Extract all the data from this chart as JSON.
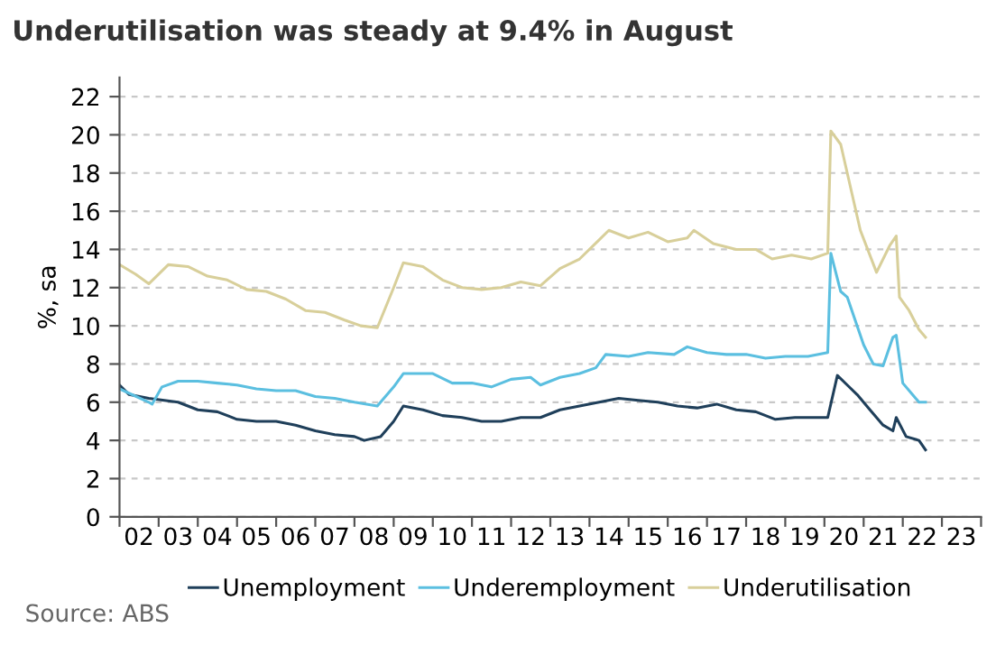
{
  "chart_data": {
    "type": "line",
    "title": "Underutilisation was steady at 9.4% in August",
    "ylabel": "%, sa",
    "annotations": [
      "Source: ABS"
    ],
    "xlim": [
      "2002-01-01",
      "2024-01-01"
    ],
    "ylim": [
      0,
      23
    ],
    "yticks": [
      0,
      2,
      4,
      6,
      8,
      10,
      12,
      14,
      16,
      18,
      20,
      22
    ],
    "xticks": [
      {
        "value": "2002-01-01",
        "label": null
      },
      {
        "value": "2003-01-01",
        "label": null
      },
      {
        "value": "2004-01-01",
        "label": null
      },
      {
        "value": "2005-01-01",
        "label": null
      },
      {
        "value": "2006-01-01",
        "label": null
      },
      {
        "value": "2007-01-01",
        "label": null
      },
      {
        "value": "2008-01-01",
        "label": null
      },
      {
        "value": "2009-01-01",
        "label": null
      },
      {
        "value": "2010-01-01",
        "label": null
      },
      {
        "value": "2011-01-01",
        "label": null
      },
      {
        "value": "2012-01-01",
        "label": null
      },
      {
        "value": "2013-01-01",
        "label": null
      },
      {
        "value": "2014-01-01",
        "label": null
      },
      {
        "value": "2015-01-01",
        "label": null
      },
      {
        "value": "2016-01-01",
        "label": null
      },
      {
        "value": "2017-01-01",
        "label": null
      },
      {
        "value": "2018-01-01",
        "label": null
      },
      {
        "value": "2019-01-01",
        "label": null
      },
      {
        "value": "2020-01-01",
        "label": null
      },
      {
        "value": "2021-01-01",
        "label": null
      },
      {
        "value": "2022-01-01",
        "label": null
      },
      {
        "value": "2023-01-01",
        "label": null
      },
      {
        "value": "2024-01-01",
        "label": null
      },
      {
        "value": "2002-07-01",
        "label": "02"
      },
      {
        "value": "2003-07-01",
        "label": "03"
      },
      {
        "value": "2004-07-01",
        "label": "04"
      },
      {
        "value": "2005-07-01",
        "label": "05"
      },
      {
        "value": "2006-07-01",
        "label": "06"
      },
      {
        "value": "2007-07-01",
        "label": "07"
      },
      {
        "value": "2008-07-01",
        "label": "08"
      },
      {
        "value": "2009-07-01",
        "label": "09"
      },
      {
        "value": "2010-07-01",
        "label": "10"
      },
      {
        "value": "2011-07-01",
        "label": "11"
      },
      {
        "value": "2012-07-01",
        "label": "12"
      },
      {
        "value": "2013-07-01",
        "label": "13"
      },
      {
        "value": "2014-07-01",
        "label": "14"
      },
      {
        "value": "2015-07-01",
        "label": "15"
      },
      {
        "value": "2016-07-01",
        "label": "16"
      },
      {
        "value": "2017-07-01",
        "label": "17"
      },
      {
        "value": "2018-07-01",
        "label": "18"
      },
      {
        "value": "2019-07-01",
        "label": "19"
      },
      {
        "value": "2020-07-01",
        "label": "20"
      },
      {
        "value": "2021-07-01",
        "label": "21"
      },
      {
        "value": "2022-07-01",
        "label": "22"
      },
      {
        "value": "2023-07-01",
        "label": "23"
      }
    ],
    "grid": "y",
    "legend": "bottom",
    "marker": "none",
    "line_style": "solid",
    "series": [
      {
        "name": "Unemployment",
        "color": "#1f3f5a",
        "x": [
          "2002-01",
          "2002-04",
          "2002-10",
          "2003-07",
          "2004-01",
          "2004-07",
          "2005-01",
          "2005-07",
          "2006-01",
          "2006-07",
          "2007-01",
          "2007-07",
          "2008-01",
          "2008-04",
          "2008-09",
          "2009-01",
          "2009-04",
          "2009-10",
          "2010-04",
          "2010-10",
          "2011-04",
          "2011-10",
          "2012-04",
          "2012-10",
          "2013-04",
          "2013-10",
          "2014-04",
          "2014-10",
          "2015-04",
          "2015-10",
          "2016-04",
          "2016-10",
          "2017-04",
          "2017-10",
          "2018-04",
          "2018-10",
          "2019-04",
          "2019-10",
          "2020-02",
          "2020-05",
          "2020-08",
          "2020-11",
          "2021-03",
          "2021-07",
          "2021-10",
          "2021-11",
          "2022-02",
          "2022-06",
          "2022-08"
        ],
        "values": [
          6.9,
          6.4,
          6.2,
          6.0,
          5.6,
          5.5,
          5.1,
          5.0,
          5.0,
          4.8,
          4.5,
          4.3,
          4.2,
          4.0,
          4.2,
          5.0,
          5.8,
          5.6,
          5.3,
          5.2,
          5.0,
          5.0,
          5.2,
          5.2,
          5.6,
          5.8,
          6.0,
          6.2,
          6.1,
          6.0,
          5.8,
          5.7,
          5.9,
          5.6,
          5.5,
          5.1,
          5.2,
          5.2,
          5.2,
          7.4,
          6.9,
          6.4,
          5.6,
          4.8,
          4.5,
          5.2,
          4.2,
          4.0,
          3.5
        ]
      },
      {
        "name": "Underemployment",
        "color": "#5bbfe0",
        "x": [
          "2002-01",
          "2002-10",
          "2002-11",
          "2003-02",
          "2003-07",
          "2004-01",
          "2004-07",
          "2005-01",
          "2005-07",
          "2006-01",
          "2006-07",
          "2007-01",
          "2007-07",
          "2008-01",
          "2008-08",
          "2009-01",
          "2009-04",
          "2010-01",
          "2010-07",
          "2011-01",
          "2011-07",
          "2012-01",
          "2012-07",
          "2012-10",
          "2013-04",
          "2013-10",
          "2014-03",
          "2014-06",
          "2015-01",
          "2015-07",
          "2016-03",
          "2016-07",
          "2017-01",
          "2017-07",
          "2018-01",
          "2018-07",
          "2019-01",
          "2019-08",
          "2020-02",
          "2020-03",
          "2020-06",
          "2020-08",
          "2021-01",
          "2021-04",
          "2021-07",
          "2021-10",
          "2021-11",
          "2022-01",
          "2022-04",
          "2022-06",
          "2022-08"
        ],
        "values": [
          6.7,
          6.0,
          5.9,
          6.8,
          7.1,
          7.1,
          7.0,
          6.9,
          6.7,
          6.6,
          6.6,
          6.3,
          6.2,
          6.0,
          5.8,
          6.8,
          7.5,
          7.5,
          7.0,
          7.0,
          6.8,
          7.2,
          7.3,
          6.9,
          7.3,
          7.5,
          7.8,
          8.5,
          8.4,
          8.6,
          8.5,
          8.9,
          8.6,
          8.5,
          8.5,
          8.3,
          8.4,
          8.4,
          8.6,
          13.8,
          11.8,
          11.5,
          9.0,
          8.0,
          7.9,
          9.4,
          9.5,
          7.0,
          6.4,
          6.0,
          6.0
        ]
      },
      {
        "name": "Underutilisation",
        "color": "#d8cf9a",
        "x": [
          "2002-01",
          "2002-06",
          "2002-10",
          "2003-04",
          "2003-10",
          "2004-04",
          "2004-10",
          "2005-04",
          "2005-10",
          "2006-04",
          "2006-10",
          "2007-04",
          "2007-10",
          "2008-03",
          "2008-08",
          "2009-01",
          "2009-04",
          "2009-10",
          "2010-04",
          "2010-10",
          "2011-04",
          "2011-10",
          "2012-04",
          "2012-10",
          "2013-04",
          "2013-10",
          "2014-04",
          "2014-07",
          "2015-01",
          "2015-07",
          "2016-01",
          "2016-07",
          "2016-09",
          "2017-03",
          "2017-10",
          "2018-04",
          "2018-09",
          "2019-03",
          "2019-09",
          "2020-02",
          "2020-03",
          "2020-06",
          "2020-08",
          "2020-12",
          "2021-05",
          "2021-09",
          "2021-11",
          "2021-12",
          "2022-03",
          "2022-06",
          "2022-08"
        ],
        "values": [
          13.2,
          12.7,
          12.2,
          13.2,
          13.1,
          12.6,
          12.4,
          11.9,
          11.8,
          11.4,
          10.8,
          10.7,
          10.3,
          10.0,
          9.9,
          12.0,
          13.3,
          13.1,
          12.4,
          12.0,
          11.9,
          12.0,
          12.3,
          12.1,
          13.0,
          13.5,
          14.5,
          15.0,
          14.6,
          14.9,
          14.4,
          14.6,
          15.0,
          14.3,
          14.0,
          14.0,
          13.5,
          13.7,
          13.5,
          13.8,
          20.2,
          19.5,
          18.0,
          15.0,
          12.8,
          14.2,
          14.7,
          11.5,
          10.8,
          9.8,
          9.4
        ]
      }
    ]
  }
}
